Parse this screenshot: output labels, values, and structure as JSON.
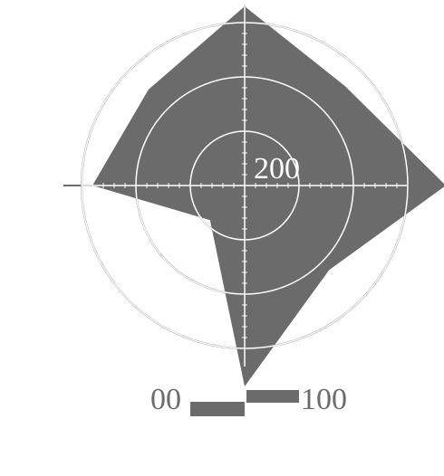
{
  "chart_data": {
    "type": "radar",
    "title": "",
    "xlabel": "",
    "ylabel": "",
    "categories": [
      "",
      "",
      "",
      "",
      "",
      "",
      "",
      ""
    ],
    "series": [
      {
        "values": [
          330,
          260,
          370,
          220,
          370,
          90,
          280,
          250
        ]
      }
    ],
    "radial_axis": {
      "min": 0,
      "max": 300,
      "ring_values": [
        100,
        200,
        300
      ]
    },
    "tick_labels": {
      "center": "200",
      "bottom_left": "00",
      "bottom_right": "100"
    },
    "grid": true,
    "colors": {
      "fill": "#6b6b6b",
      "grid": "#6b6b6b",
      "inner_grid": "#ffffff",
      "text": "#ffffff",
      "legend_text": "#6b6b6b"
    },
    "legend": {
      "position": "bottom"
    }
  }
}
